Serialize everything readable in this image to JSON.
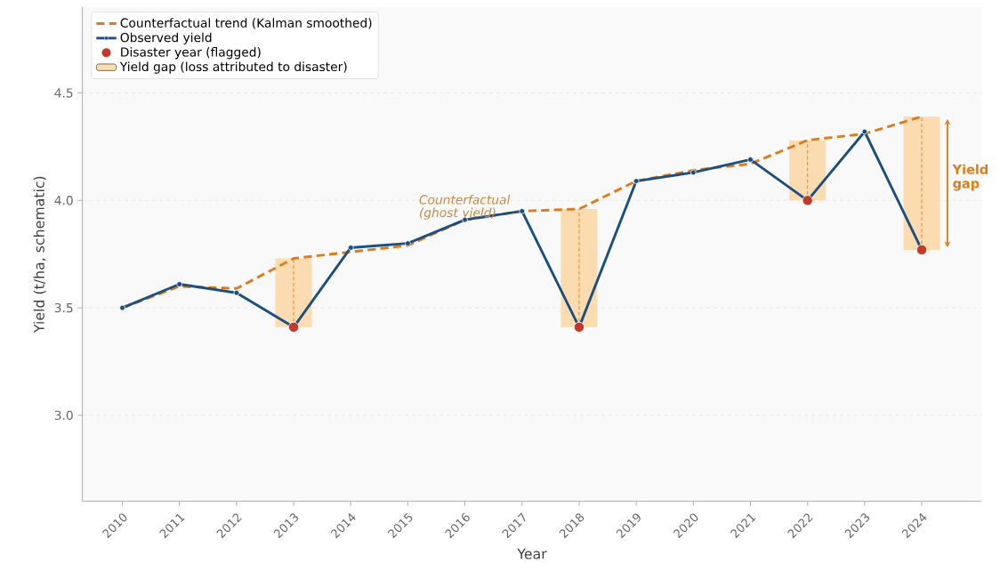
{
  "chart_data": {
    "type": "line",
    "xlabel": "Year",
    "ylabel": "Yield (t/ha, schematic)",
    "x": [
      2010,
      2011,
      2012,
      2013,
      2014,
      2015,
      2016,
      2017,
      2018,
      2019,
      2020,
      2021,
      2022,
      2023,
      2024
    ],
    "series": [
      {
        "name": "Counterfactual trend (Kalman smoothed)",
        "color": "#e07b1a",
        "line_style": "dashed",
        "marker": "none",
        "values": [
          3.5,
          3.6,
          3.59,
          3.73,
          3.76,
          3.79,
          3.91,
          3.95,
          3.96,
          4.09,
          4.14,
          4.17,
          4.28,
          4.31,
          4.39
        ]
      },
      {
        "name": "Observed yield",
        "color": "#1b4f80",
        "line_style": "solid",
        "marker": "circle",
        "values": [
          3.5,
          3.61,
          3.57,
          3.41,
          3.78,
          3.8,
          3.91,
          3.95,
          3.41,
          4.09,
          4.13,
          4.19,
          4.0,
          4.32,
          3.77
        ]
      },
      {
        "name": "Disaster year (flagged)",
        "type": "scatter",
        "color": "#c0392b",
        "marker": "circle",
        "x": [
          2013,
          2018,
          2022,
          2024
        ],
        "values": [
          3.41,
          3.41,
          4.0,
          3.77
        ],
        "errors": [
          [
            3.41,
            3.73
          ],
          [
            3.41,
            3.96
          ],
          [
            4.0,
            4.28
          ],
          [
            3.77,
            4.39
          ]
        ]
      },
      {
        "name": "Yield gap (loss attributed to disaster)",
        "type": "bar",
        "color": "#fbdcb0",
        "x": [
          2013,
          2018,
          2022,
          2024
        ],
        "base": [
          3.41,
          3.41,
          4.0,
          3.77
        ],
        "values": [
          0.32,
          0.55,
          0.28,
          0.62
        ]
      }
    ],
    "xlim": [
      2009.3,
      2025.05
    ],
    "ylim": [
      2.6,
      4.9
    ],
    "xticks": [
      2010,
      2011,
      2012,
      2013,
      2014,
      2015,
      2016,
      2017,
      2018,
      2019,
      2020,
      2021,
      2022,
      2023,
      2024
    ],
    "yticks": [
      {
        "value": 3.0,
        "label": "3.0"
      },
      {
        "value": 3.5,
        "label": "3.5"
      },
      {
        "value": 4.0,
        "label": "4.0"
      },
      {
        "value": 4.5,
        "label": "4.5"
      }
    ],
    "grid": "y",
    "legend": "top left",
    "annotations": [
      "Counterfactual (ghost yield)",
      "Yield gap"
    ]
  }
}
